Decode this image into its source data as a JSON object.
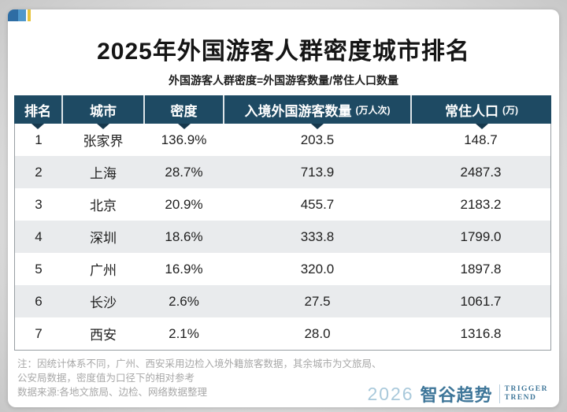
{
  "page": {
    "title": "2025年外国游客人群密度城市排名",
    "subtitle": "外国游客人群密度=外国游客数量/常住人口数量"
  },
  "chart_data": {
    "type": "table",
    "title": "2025年外国游客人群密度城市排名",
    "subtitle": "外国游客人群密度=外国游客数量/常住人口数量",
    "columns": [
      {
        "label": "排名",
        "unit": ""
      },
      {
        "label": "城市",
        "unit": ""
      },
      {
        "label": "密度",
        "unit": ""
      },
      {
        "label": "入境外国游客数量",
        "unit": "(万人次)"
      },
      {
        "label": "常住人口",
        "unit": "(万)"
      }
    ],
    "rows": [
      [
        "1",
        "张家界",
        "136.9%",
        "203.5",
        "148.7"
      ],
      [
        "2",
        "上海",
        "28.7%",
        "713.9",
        "2487.3"
      ],
      [
        "3",
        "北京",
        "20.9%",
        "455.7",
        "2183.2"
      ],
      [
        "4",
        "深圳",
        "18.6%",
        "333.8",
        "1799.0"
      ],
      [
        "5",
        "广州",
        "16.9%",
        "320.0",
        "1897.8"
      ],
      [
        "6",
        "长沙",
        "2.6%",
        "27.5",
        "1061.7"
      ],
      [
        "7",
        "西安",
        "2.1%",
        "28.0",
        "1316.8"
      ]
    ]
  },
  "notes": {
    "line1": "注：因统计体系不同，广州、西安采用边检入境外籍旅客数据，其余城市为文旅局、",
    "line2": "公安局数据，密度值为口径下的相对参考",
    "line3": "数据来源:各地文旅局、边检、网络数据整理"
  },
  "logo": {
    "year": "2026",
    "brand": "智谷趋势",
    "tagline": [
      "TRIGGER",
      "TREND"
    ]
  },
  "colors": {
    "header_bg": "#1e4a63",
    "row_alt": "#e9ebed",
    "accent_blue_dark": "#2e6da4",
    "accent_blue_light": "#4e97cb",
    "accent_yellow": "#e6c33c",
    "logo_blue": "#3e7699",
    "logo_year_blue": "#a9c9db"
  }
}
